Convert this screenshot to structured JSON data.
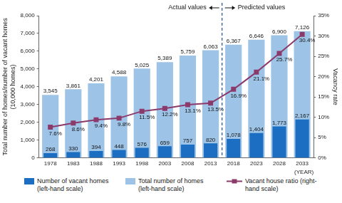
{
  "chart_data": {
    "type": "bar",
    "categories": [
      "1978",
      "1983",
      "1988",
      "1993",
      "1998",
      "2003",
      "2008",
      "2013",
      "2018",
      "2023",
      "2028",
      "2033"
    ],
    "series": [
      {
        "name": "Number of vacant homes (left-hand scale)",
        "type": "bar",
        "color": "#1b6ec2",
        "values": [
          268,
          330,
          394,
          448,
          576,
          659,
          757,
          820,
          1078,
          1404,
          1773,
          2167
        ],
        "value_labels": [
          "268",
          "330",
          "394",
          "448",
          "576",
          "659",
          "757",
          "820",
          "1,078",
          "1,404",
          "1,773",
          "2,167"
        ]
      },
      {
        "name": "Total number of homes (left-hand scale)",
        "type": "bar",
        "color": "#9dc3e6",
        "values": [
          3545,
          3861,
          4201,
          4588,
          5025,
          5389,
          5759,
          6063,
          6367,
          6646,
          6900,
          7126
        ],
        "value_labels": [
          "3,545",
          "3,861",
          "4,201",
          "4,588",
          "5,025",
          "5,389",
          "5,759",
          "6,063",
          "6,367",
          "6,646",
          "6,900",
          "7,126"
        ]
      },
      {
        "name": "Vacant house ratio (right-hand scale)",
        "type": "line",
        "axis": "y2",
        "color": "#8b3a6b",
        "marker": "square",
        "line_style": "solid",
        "values": [
          7.6,
          8.6,
          9.4,
          9.8,
          11.5,
          12.2,
          13.1,
          13.5,
          16.9,
          21.1,
          25.7,
          30.4
        ],
        "value_labels": [
          "7.6%",
          "8.6%",
          "9.4%",
          "9.8%",
          "11.5%",
          "12.2%",
          "13.1%",
          "13.5%",
          "16.9%",
          "21.1%",
          "25.7%",
          "30.4%"
        ]
      }
    ],
    "x_label": "(YEAR)",
    "y_label": [
      "Total number of homes/number of vacant homes",
      "(10,000 homes)"
    ],
    "y2_label": "Vacancy rate",
    "ylim": [
      0,
      8000
    ],
    "yticks": [
      0,
      {
        "value": 1000,
        "label": "1,000"
      },
      {
        "value": 2000,
        "label": "2,000"
      },
      {
        "value": 3000,
        "label": "3,000"
      },
      {
        "value": 4000,
        "label": "4,000"
      },
      {
        "value": 5000,
        "label": "5,000"
      },
      {
        "value": 6000,
        "label": "6,000"
      },
      {
        "value": 7000,
        "label": "7,000"
      },
      {
        "value": 8000,
        "label": "8,000"
      }
    ],
    "y2lim": [
      0,
      35
    ],
    "y2ticks": [
      {
        "value": 0,
        "label": "0%"
      },
      {
        "value": 5,
        "label": "5%"
      },
      {
        "value": 10,
        "label": "10%"
      },
      {
        "value": 15,
        "label": "15%"
      },
      {
        "value": 20,
        "label": "20%"
      },
      {
        "value": 25,
        "label": "25%"
      },
      {
        "value": 30,
        "label": "30%"
      },
      {
        "value": 35,
        "label": "35%"
      }
    ],
    "annotations": [
      {
        "text": "Actual values",
        "side": "left"
      },
      {
        "text": "Predicted values",
        "side": "right"
      }
    ],
    "divider_after": "2013",
    "data_labels": true,
    "grid": false,
    "legend": "bottom"
  }
}
